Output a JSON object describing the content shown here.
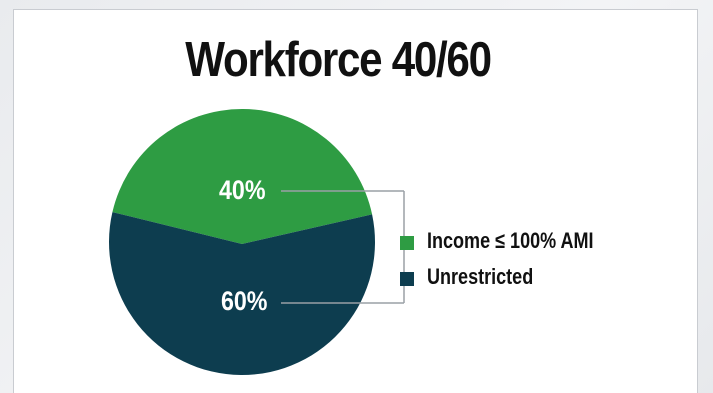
{
  "chart_data": {
    "type": "pie",
    "title": "Workforce 40/60",
    "slices": [
      {
        "name": "Income ≤ 100% AMI",
        "label": "40%",
        "value": 40,
        "color": "#2e9c43"
      },
      {
        "name": "Unrestricted",
        "label": "60%",
        "value": 60,
        "color": "#0d3d4f"
      }
    ],
    "legend_placement": "right"
  },
  "colors": {
    "connector": "#9aa0a6",
    "card_border": "#c9ccd1",
    "page_background": "#ebedf0"
  }
}
